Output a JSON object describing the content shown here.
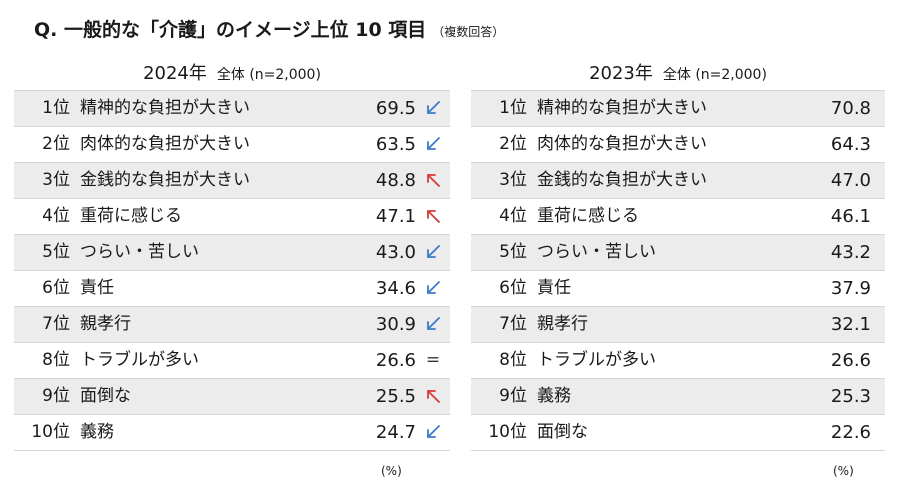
{
  "title": {
    "main": "Q. 一般的な「介護」のイメージ上位 10 項目",
    "sub": "（複数回答）"
  },
  "colors": {
    "down": "#3a78c9",
    "up": "#d63a3a",
    "equal": "#333333",
    "stripe": "#ececec"
  },
  "unit_label": "(%)",
  "chart_data": [
    {
      "type": "table",
      "year_label": "2024年",
      "sample_label": "全体 (n=2,000)",
      "columns": [
        "rank",
        "item",
        "value",
        "trend"
      ],
      "rows": [
        {
          "rank": "1位",
          "item": "精神的な負担が大きい",
          "value": "69.5",
          "trend": "down"
        },
        {
          "rank": "2位",
          "item": "肉体的な負担が大きい",
          "value": "63.5",
          "trend": "down"
        },
        {
          "rank": "3位",
          "item": "金銭的な負担が大きい",
          "value": "48.8",
          "trend": "up"
        },
        {
          "rank": "4位",
          "item": "重荷に感じる",
          "value": "47.1",
          "trend": "up"
        },
        {
          "rank": "5位",
          "item": "つらい・苦しい",
          "value": "43.0",
          "trend": "down"
        },
        {
          "rank": "6位",
          "item": "責任",
          "value": "34.6",
          "trend": "down"
        },
        {
          "rank": "7位",
          "item": "親孝行",
          "value": "30.9",
          "trend": "down"
        },
        {
          "rank": "8位",
          "item": "トラブルが多い",
          "value": "26.6",
          "trend": "equal"
        },
        {
          "rank": "9位",
          "item": "面倒な",
          "value": "25.5",
          "trend": "up"
        },
        {
          "rank": "10位",
          "item": "義務",
          "value": "24.7",
          "trend": "down"
        }
      ]
    },
    {
      "type": "table",
      "year_label": "2023年",
      "sample_label": "全体 (n=2,000)",
      "columns": [
        "rank",
        "item",
        "value"
      ],
      "rows": [
        {
          "rank": "1位",
          "item": "精神的な負担が大きい",
          "value": "70.8"
        },
        {
          "rank": "2位",
          "item": "肉体的な負担が大きい",
          "value": "64.3"
        },
        {
          "rank": "3位",
          "item": "金銭的な負担が大きい",
          "value": "47.0"
        },
        {
          "rank": "4位",
          "item": "重荷に感じる",
          "value": "46.1"
        },
        {
          "rank": "5位",
          "item": "つらい・苦しい",
          "value": "43.2"
        },
        {
          "rank": "6位",
          "item": "責任",
          "value": "37.9"
        },
        {
          "rank": "7位",
          "item": "親孝行",
          "value": "32.1"
        },
        {
          "rank": "8位",
          "item": "トラブルが多い",
          "value": "26.6"
        },
        {
          "rank": "9位",
          "item": "義務",
          "value": "25.3"
        },
        {
          "rank": "10位",
          "item": "面倒な",
          "value": "22.6"
        }
      ]
    }
  ]
}
